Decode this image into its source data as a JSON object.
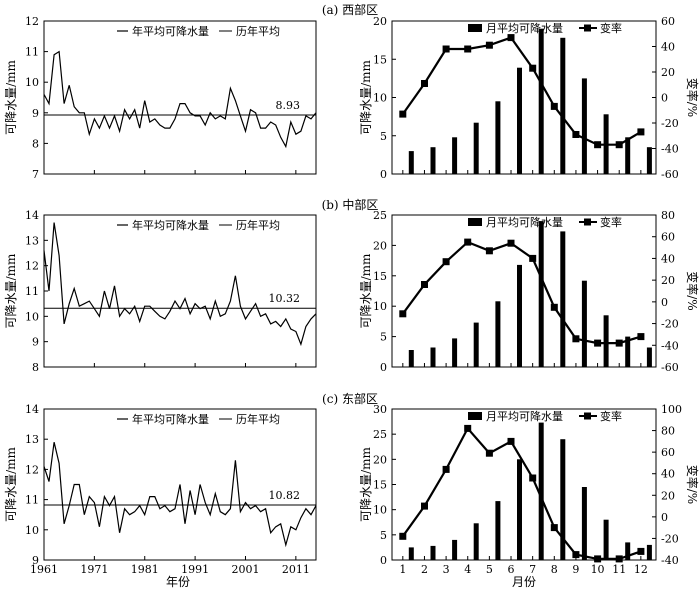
{
  "panels": [
    {
      "title": "(a) 西部区"
    },
    {
      "title": "(b) 中部区"
    },
    {
      "title": "(c) 东部区"
    }
  ],
  "left_ylabel": "可降水量/mm",
  "right_ylabel_left": "可降水量/mm",
  "right_ylabel_right": "变率/%",
  "left_xlabel": "年份",
  "right_xlabel": "月份",
  "legend_left": {
    "line1": "年平均可降水量",
    "line2": "历年平均"
  },
  "legend_right": {
    "bar": "月平均可降水量",
    "line": "变率"
  },
  "colors": {
    "axis": "#000000",
    "series": "#000000",
    "background": "#ffffff"
  },
  "chart_data": [
    {
      "type": "line",
      "title": "(a) 西部区",
      "xlabel": "",
      "ylabel": "可降水量/mm",
      "xticks": [
        1961,
        1971,
        1981,
        1991,
        2001,
        2011
      ],
      "xlim": [
        1961,
        2015
      ],
      "ylim": [
        7,
        12
      ],
      "yticks": [
        7,
        8,
        9,
        10,
        11,
        12
      ],
      "mean_label": "8.93",
      "series": [
        {
          "name": "年平均可降水量",
          "x": [
            1961,
            1962,
            1963,
            1964,
            1965,
            1966,
            1967,
            1968,
            1969,
            1970,
            1971,
            1972,
            1973,
            1974,
            1975,
            1976,
            1977,
            1978,
            1979,
            1980,
            1981,
            1982,
            1983,
            1984,
            1985,
            1986,
            1987,
            1988,
            1989,
            1990,
            1991,
            1992,
            1993,
            1994,
            1995,
            1996,
            1997,
            1998,
            1999,
            2000,
            2001,
            2002,
            2003,
            2004,
            2005,
            2006,
            2007,
            2008,
            2009,
            2010,
            2011,
            2012,
            2013,
            2014,
            2015
          ],
          "y": [
            9.6,
            9.3,
            10.9,
            11.0,
            9.3,
            9.9,
            9.2,
            9.0,
            9.0,
            8.3,
            8.8,
            8.5,
            8.9,
            8.5,
            8.9,
            8.4,
            9.1,
            8.8,
            9.1,
            8.5,
            9.4,
            8.7,
            8.8,
            8.6,
            8.5,
            8.5,
            8.8,
            9.3,
            9.3,
            9.0,
            8.9,
            8.9,
            8.6,
            9.0,
            8.8,
            8.9,
            8.8,
            9.8,
            9.4,
            8.9,
            8.4,
            9.1,
            9.0,
            8.5,
            8.5,
            8.7,
            8.6,
            8.2,
            7.9,
            8.7,
            8.3,
            8.4,
            8.9,
            8.8,
            9.0
          ]
        },
        {
          "name": "历年平均",
          "y": 8.93
        }
      ]
    },
    {
      "type": "bar",
      "title": "(a) 西部区",
      "xlabel": "",
      "ylabel": "可降水量/mm",
      "y2label": "变率/%",
      "categories": [
        1,
        2,
        3,
        4,
        5,
        6,
        7,
        8,
        9,
        10,
        11,
        12
      ],
      "ylim": [
        0,
        20
      ],
      "yticks": [
        0,
        5,
        10,
        15,
        20
      ],
      "y2lim": [
        -60,
        60
      ],
      "y2ticks": [
        -60,
        -40,
        -20,
        0,
        20,
        40,
        60
      ],
      "series": [
        {
          "name": "月平均可降水量",
          "values": [
            3.0,
            3.5,
            4.8,
            6.7,
            9.5,
            13.9,
            19.0,
            17.8,
            12.5,
            7.8,
            4.8,
            3.5
          ]
        },
        {
          "name": "变率",
          "values": [
            -13,
            11,
            38,
            38,
            41,
            47,
            23,
            -7,
            -29,
            -37,
            -37,
            -27
          ]
        }
      ]
    },
    {
      "type": "line",
      "title": "(b) 中部区",
      "xlabel": "",
      "ylabel": "可降水量/mm",
      "xticks": [
        1961,
        1971,
        1981,
        1991,
        2001,
        2011
      ],
      "xlim": [
        1961,
        2015
      ],
      "ylim": [
        8,
        14
      ],
      "yticks": [
        8,
        9,
        10,
        11,
        12,
        13,
        14
      ],
      "mean_label": "10.32",
      "series": [
        {
          "name": "年平均可降水量",
          "x": [
            1961,
            1962,
            1963,
            1964,
            1965,
            1966,
            1967,
            1968,
            1969,
            1970,
            1971,
            1972,
            1973,
            1974,
            1975,
            1976,
            1977,
            1978,
            1979,
            1980,
            1981,
            1982,
            1983,
            1984,
            1985,
            1986,
            1987,
            1988,
            1989,
            1990,
            1991,
            1992,
            1993,
            1994,
            1995,
            1996,
            1997,
            1998,
            1999,
            2000,
            2001,
            2002,
            2003,
            2004,
            2005,
            2006,
            2007,
            2008,
            2009,
            2010,
            2011,
            2012,
            2013,
            2014,
            2015
          ],
          "y": [
            12.6,
            11.0,
            13.7,
            12.4,
            9.7,
            10.5,
            11.1,
            10.4,
            10.5,
            10.6,
            10.3,
            10.0,
            11.0,
            10.3,
            11.2,
            10.0,
            10.3,
            10.1,
            10.4,
            9.8,
            10.4,
            10.4,
            10.2,
            10.0,
            9.9,
            10.2,
            10.6,
            10.3,
            10.7,
            10.1,
            10.5,
            10.3,
            10.4,
            9.9,
            10.6,
            10.0,
            10.1,
            10.6,
            11.6,
            10.4,
            9.9,
            10.2,
            10.5,
            10.0,
            10.1,
            9.7,
            9.8,
            9.6,
            9.9,
            9.5,
            9.4,
            8.9,
            9.6,
            9.9,
            10.1
          ]
        },
        {
          "name": "历年平均",
          "y": 10.32
        }
      ]
    },
    {
      "type": "bar",
      "title": "(b) 中部区",
      "xlabel": "",
      "ylabel": "可降水量/mm",
      "y2label": "变率/%",
      "categories": [
        1,
        2,
        3,
        4,
        5,
        6,
        7,
        8,
        9,
        10,
        11,
        12
      ],
      "ylim": [
        0,
        25
      ],
      "yticks": [
        0,
        5,
        10,
        15,
        20,
        25
      ],
      "y2lim": [
        -60,
        80
      ],
      "y2ticks": [
        -60,
        -40,
        -20,
        0,
        20,
        40,
        60,
        80
      ],
      "series": [
        {
          "name": "月平均可降水量",
          "values": [
            2.8,
            3.2,
            4.7,
            7.3,
            10.8,
            16.8,
            24.0,
            22.3,
            14.2,
            8.5,
            5.0,
            3.2
          ]
        },
        {
          "name": "变率",
          "values": [
            -11,
            16,
            37,
            55,
            47,
            54,
            40,
            -5,
            -34,
            -38,
            -38,
            -32
          ]
        }
      ]
    },
    {
      "type": "line",
      "title": "(c) 东部区",
      "xlabel": "年份",
      "ylabel": "可降水量/mm",
      "xticks": [
        1961,
        1971,
        1981,
        1991,
        2001,
        2011
      ],
      "xlim": [
        1961,
        2015
      ],
      "ylim": [
        9,
        14
      ],
      "yticks": [
        9,
        10,
        11,
        12,
        13,
        14
      ],
      "mean_label": "10.82",
      "series": [
        {
          "name": "年平均可降水量",
          "x": [
            1961,
            1962,
            1963,
            1964,
            1965,
            1966,
            1967,
            1968,
            1969,
            1970,
            1971,
            1972,
            1973,
            1974,
            1975,
            1976,
            1977,
            1978,
            1979,
            1980,
            1981,
            1982,
            1983,
            1984,
            1985,
            1986,
            1987,
            1988,
            1989,
            1990,
            1991,
            1992,
            1993,
            1994,
            1995,
            1996,
            1997,
            1998,
            1999,
            2000,
            2001,
            2002,
            2003,
            2004,
            2005,
            2006,
            2007,
            2008,
            2009,
            2010,
            2011,
            2012,
            2013,
            2014,
            2015
          ],
          "y": [
            12.1,
            11.6,
            12.9,
            12.2,
            10.2,
            10.8,
            11.5,
            11.5,
            10.5,
            11.1,
            10.9,
            10.1,
            11.1,
            10.8,
            11.1,
            9.9,
            10.7,
            10.5,
            10.6,
            10.8,
            10.5,
            11.1,
            11.1,
            10.7,
            10.8,
            10.6,
            10.7,
            11.5,
            10.2,
            11.3,
            10.5,
            11.5,
            10.9,
            10.5,
            11.2,
            10.6,
            10.5,
            10.7,
            12.3,
            10.6,
            10.9,
            10.7,
            10.8,
            10.6,
            10.7,
            9.9,
            10.1,
            10.2,
            9.5,
            10.1,
            10.0,
            10.4,
            10.7,
            10.5,
            10.8
          ]
        },
        {
          "name": "历年平均",
          "y": 10.82
        }
      ]
    },
    {
      "type": "bar",
      "title": "(c) 东部区",
      "xlabel": "月份",
      "ylabel": "可降水量/mm",
      "y2label": "变率/%",
      "categories": [
        1,
        2,
        3,
        4,
        5,
        6,
        7,
        8,
        9,
        10,
        11,
        12
      ],
      "ylim": [
        0,
        30
      ],
      "yticks": [
        0,
        5,
        10,
        15,
        20,
        25,
        30
      ],
      "y2lim": [
        -40,
        100
      ],
      "y2ticks": [
        -40,
        -20,
        0,
        20,
        40,
        60,
        80,
        100
      ],
      "series": [
        {
          "name": "月平均可降水量",
          "values": [
            2.5,
            2.8,
            4.0,
            7.3,
            11.7,
            20.0,
            27.3,
            24.0,
            14.5,
            8.0,
            3.5,
            3.0
          ]
        },
        {
          "name": "变率",
          "values": [
            -18,
            10,
            44,
            82,
            59,
            70,
            36,
            -10,
            -35,
            -39,
            -39,
            -32
          ]
        }
      ]
    }
  ]
}
